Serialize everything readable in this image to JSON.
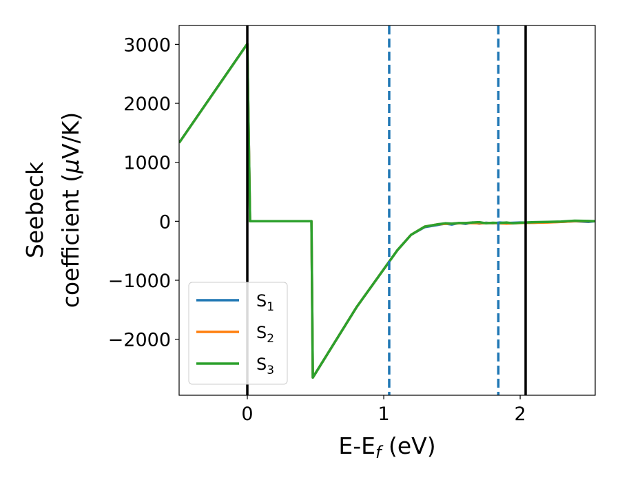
{
  "chart_data": {
    "type": "line",
    "xlabel": {
      "main": "E-E",
      "sub": "f",
      "rest": " (eV)"
    },
    "ylabel": {
      "line1": "Seebeck",
      "line2": "coefficient  (",
      "mu": "μ",
      "unit": "V/K)"
    },
    "xlim": [
      -0.5,
      2.55
    ],
    "ylim": [
      -2950,
      3320
    ],
    "xticks": [
      {
        "value": 0,
        "label": "0"
      },
      {
        "value": 1,
        "label": "1"
      },
      {
        "value": 2,
        "label": "2"
      }
    ],
    "yticks": [
      {
        "value": 3000,
        "label": "3000"
      },
      {
        "value": 2000,
        "label": "2000"
      },
      {
        "value": 1000,
        "label": "1000"
      },
      {
        "value": 0,
        "label": "0"
      },
      {
        "value": -1000,
        "label": "−1000"
      },
      {
        "value": -2000,
        "label": "−2000"
      }
    ],
    "grid": false,
    "legend_position": "lower-left",
    "vlines": [
      {
        "x": 0.0,
        "color": "#000000",
        "style": "solid"
      },
      {
        "x": 2.04,
        "color": "#000000",
        "style": "solid"
      },
      {
        "x": 1.04,
        "color": "#1f77b4",
        "style": "dashed"
      },
      {
        "x": 1.84,
        "color": "#1f77b4",
        "style": "dashed"
      }
    ],
    "series": [
      {
        "name": "S",
        "sub": "1",
        "color": "#1f77b4",
        "x": [
          -0.5,
          0.0,
          0.02,
          0.47,
          0.48,
          0.8,
          1.1,
          1.2,
          1.3,
          1.4,
          1.45,
          1.5,
          1.55,
          1.6,
          1.65,
          1.7,
          1.75,
          1.8,
          1.85,
          1.9,
          1.95,
          2.0,
          2.1,
          2.2,
          2.3,
          2.4,
          2.5,
          2.55
        ],
        "y": [
          1330,
          3010,
          0,
          0,
          -2650,
          -1460,
          -490,
          -230,
          -100,
          -60,
          -40,
          -55,
          -30,
          -45,
          -20,
          -40,
          -25,
          -35,
          -20,
          -30,
          -25,
          -20,
          -25,
          -15,
          -10,
          0,
          -10,
          0
        ]
      },
      {
        "name": "S",
        "sub": "2",
        "color": "#ff7f0e",
        "x": [
          -0.5,
          0.0,
          0.02,
          0.47,
          0.48,
          0.8,
          1.1,
          1.2,
          1.3,
          1.4,
          1.5,
          1.6,
          1.7,
          1.8,
          1.9,
          2.0,
          2.1,
          2.2,
          2.3,
          2.4,
          2.5,
          2.55
        ],
        "y": [
          1330,
          3010,
          0,
          0,
          -2650,
          -1460,
          -490,
          -230,
          -90,
          -50,
          -40,
          -30,
          -35,
          -30,
          -40,
          -30,
          -25,
          -20,
          -10,
          0,
          0,
          0
        ]
      },
      {
        "name": "S",
        "sub": "3",
        "color": "#2ca02c",
        "x": [
          -0.5,
          0.0,
          0.02,
          0.47,
          0.48,
          0.8,
          1.1,
          1.2,
          1.3,
          1.35,
          1.4,
          1.45,
          1.5,
          1.55,
          1.6,
          1.65,
          1.7,
          1.75,
          1.8,
          1.85,
          1.9,
          1.95,
          2.0,
          2.1,
          2.2,
          2.3,
          2.4,
          2.5,
          2.55
        ],
        "y": [
          1330,
          3010,
          0,
          0,
          -2650,
          -1460,
          -490,
          -230,
          -90,
          -70,
          -50,
          -35,
          -40,
          -30,
          -30,
          -20,
          -15,
          -35,
          -25,
          -30,
          -20,
          -35,
          -25,
          -15,
          -10,
          -5,
          10,
          5,
          0
        ]
      }
    ]
  }
}
